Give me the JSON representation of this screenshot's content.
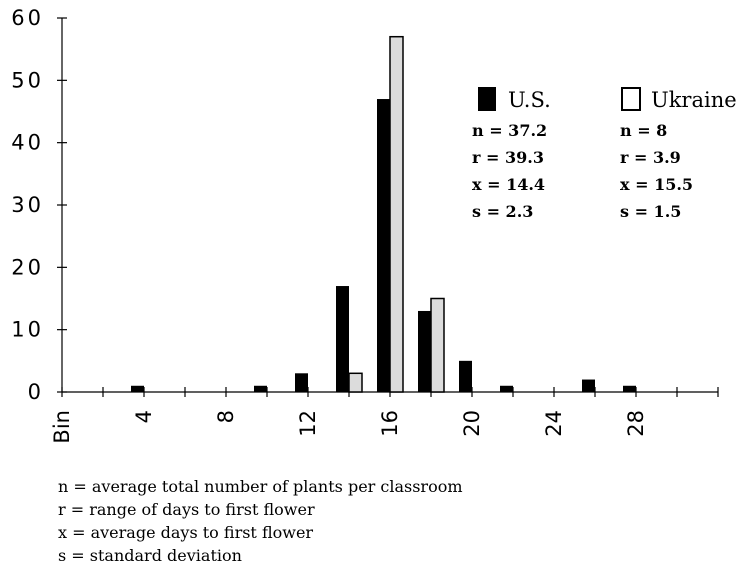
{
  "chart_data": {
    "type": "bar",
    "title": "",
    "xlabel": "",
    "ylabel": "",
    "ylim": [
      0,
      60
    ],
    "y_ticks": [
      "0",
      "10",
      "20",
      "30",
      "40",
      "50",
      "60"
    ],
    "x_tick_labels": [
      "Bin",
      "4",
      "8",
      "12",
      "16",
      "20",
      "24",
      "28"
    ],
    "x_label_values": [
      0,
      4,
      8,
      12,
      16,
      20,
      24,
      28
    ],
    "grid": false,
    "legend_placement": "top-right",
    "series": [
      {
        "name": "U.S.",
        "color": "#000000",
        "x": [
          4,
          10,
          12,
          14,
          16,
          18,
          20,
          22,
          26,
          28
        ],
        "values": [
          1,
          1,
          3,
          17,
          47,
          13,
          5,
          1,
          2,
          1
        ],
        "stats": [
          "n =  37.2",
          "r = 39.3",
          "x =  14.4",
          "s =  2.3"
        ]
      },
      {
        "name": "Ukraine",
        "color": "#dcdcdc",
        "x": [
          14,
          16,
          18
        ],
        "values": [
          3,
          57,
          15
        ],
        "stats": [
          "n =  8",
          "r =   3.9",
          "x =  15.5",
          "s =  1.5"
        ]
      }
    ]
  },
  "notes": [
    "n =  average total number of plants per classroom",
    "r =  range of days to first flower",
    "x =  average days to first flower",
    "s =  standard deviation"
  ]
}
